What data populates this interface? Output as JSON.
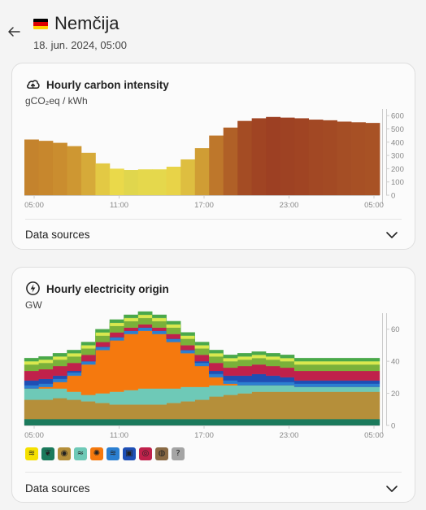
{
  "header": {
    "country": "Nemčija",
    "datetime": "18. jun. 2024, 05:00",
    "flag_colors": [
      "#000000",
      "#dd0000",
      "#ffce00"
    ]
  },
  "carbon_card": {
    "title": "Hourly carbon intensity",
    "unit": "gCO₂eq / kWh",
    "data_sources_label": "Data sources",
    "icon": "cloud-upload-icon"
  },
  "origin_card": {
    "title": "Hourly electricity origin",
    "unit": "GW",
    "data_sources_label": "Data sources",
    "icon": "lightning-bolt-icon",
    "legend": [
      {
        "icon": "solar-icon",
        "color": "#f5e000",
        "glyph": "≋"
      },
      {
        "icon": "biomass-icon",
        "color": "#1b7a5c",
        "glyph": "❦"
      },
      {
        "icon": "gas-icon",
        "color": "#b58f3a",
        "glyph": "◉"
      },
      {
        "icon": "wind-icon",
        "color": "#6ec9b7",
        "glyph": "≈"
      },
      {
        "icon": "nuclear-icon",
        "color": "#f5790e",
        "glyph": "✺"
      },
      {
        "icon": "hydro-icon",
        "color": "#2b7fd1",
        "glyph": "≋"
      },
      {
        "icon": "storage-icon",
        "color": "#1e4fb5",
        "glyph": "▣"
      },
      {
        "icon": "coal-icon",
        "color": "#c0214b",
        "glyph": "◎"
      },
      {
        "icon": "oil-icon",
        "color": "#8a6a45",
        "glyph": "◍"
      },
      {
        "icon": "unknown-icon",
        "color": "#a5a5a5",
        "glyph": "?"
      }
    ]
  },
  "chart_data": [
    {
      "type": "bar",
      "title": "Hourly carbon intensity",
      "ylabel": "gCO₂eq / kWh",
      "x_tick_labels": [
        "05:00",
        "11:00",
        "17:00",
        "23:00",
        "05:00"
      ],
      "y_tick_labels": [
        "0",
        "100",
        "200",
        "300",
        "400",
        "500",
        "600"
      ],
      "ylim": [
        0,
        650
      ],
      "values": [
        420,
        410,
        395,
        370,
        320,
        240,
        200,
        190,
        195,
        195,
        215,
        270,
        355,
        450,
        510,
        560,
        580,
        590,
        585,
        580,
        570,
        565,
        555,
        550,
        545
      ]
    },
    {
      "type": "area",
      "title": "Hourly electricity origin",
      "ylabel": "GW",
      "x_tick_labels": [
        "05:00",
        "11:00",
        "17:00",
        "23:00",
        "05:00"
      ],
      "y_tick_labels": [
        "0",
        "20",
        "40",
        "60"
      ],
      "ylim": [
        0,
        70
      ],
      "stack_order": [
        "biomass",
        "gas",
        "wind",
        "nuclear",
        "hydro",
        "storage",
        "coal",
        "lignite",
        "geothermal",
        "solar",
        "other"
      ],
      "series": [
        {
          "name": "biomass",
          "color": "#1b7a5c",
          "values": [
            4,
            4,
            4,
            4,
            4,
            4,
            4,
            4,
            4,
            4,
            4,
            4,
            4,
            4,
            4,
            4,
            4,
            4,
            4,
            4,
            4,
            4,
            4,
            4,
            4
          ]
        },
        {
          "name": "gas",
          "color": "#b58f3a",
          "values": [
            12,
            12,
            13,
            12,
            11,
            10,
            9,
            9,
            9,
            9,
            10,
            11,
            12,
            14,
            15,
            16,
            17,
            17,
            17,
            17,
            17,
            17,
            17,
            17,
            17
          ]
        },
        {
          "name": "wind",
          "color": "#6ec9b7",
          "values": [
            7,
            7,
            6,
            5,
            4,
            6,
            8,
            9,
            10,
            10,
            9,
            9,
            8,
            7,
            6,
            5,
            4,
            4,
            4,
            3,
            3,
            3,
            3,
            3,
            3
          ]
        },
        {
          "name": "solar",
          "color": "#f5790e",
          "values": [
            0,
            1,
            4,
            10,
            19,
            27,
            32,
            35,
            36,
            34,
            29,
            21,
            13,
            5,
            1,
            0,
            0,
            0,
            0,
            0,
            0,
            0,
            0,
            0,
            0
          ]
        },
        {
          "name": "hydro",
          "color": "#2b7fd1",
          "values": [
            2,
            2,
            2,
            2,
            2,
            2,
            2,
            2,
            2,
            2,
            2,
            2,
            2,
            2,
            2,
            2,
            2,
            2,
            2,
            2,
            2,
            2,
            2,
            2,
            2
          ]
        },
        {
          "name": "storage",
          "color": "#1e4fb5",
          "values": [
            3,
            3,
            2,
            1,
            0,
            0,
            0,
            0,
            0,
            0,
            0,
            0,
            1,
            2,
            3,
            4,
            5,
            4,
            3,
            2,
            2,
            2,
            2,
            2,
            2
          ]
        },
        {
          "name": "coal",
          "color": "#c0214b",
          "values": [
            6,
            6,
            6,
            5,
            4,
            3,
            3,
            2,
            2,
            2,
            3,
            3,
            4,
            5,
            5,
            6,
            6,
            6,
            6,
            6,
            6,
            6,
            6,
            6,
            6
          ]
        },
        {
          "name": "lignite",
          "color": "#7ab13a",
          "values": [
            4,
            4,
            4,
            4,
            4,
            4,
            4,
            4,
            4,
            4,
            4,
            4,
            4,
            4,
            4,
            4,
            4,
            4,
            4,
            4,
            4,
            4,
            4,
            4,
            4
          ]
        },
        {
          "name": "oil",
          "color": "#d9e84e",
          "values": [
            2,
            2,
            2,
            2,
            2,
            2,
            2,
            2,
            2,
            2,
            2,
            2,
            2,
            2,
            2,
            2,
            2,
            2,
            2,
            2,
            2,
            2,
            2,
            2,
            2
          ]
        },
        {
          "name": "other",
          "color": "#4aa84a",
          "values": [
            2,
            2,
            2,
            2,
            2,
            2,
            2,
            2,
            2,
            2,
            2,
            2,
            2,
            2,
            2,
            2,
            2,
            2,
            2,
            2,
            2,
            2,
            2,
            2,
            2
          ]
        }
      ]
    }
  ]
}
